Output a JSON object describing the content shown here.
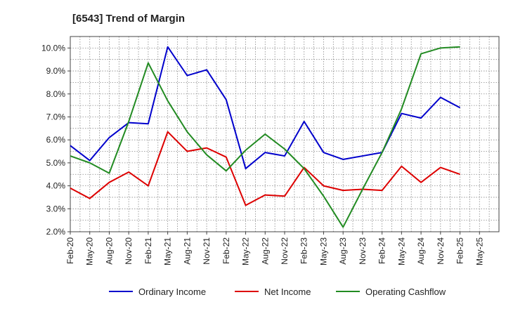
{
  "chart_data": {
    "type": "line",
    "title": "[6543]  Trend of Margin",
    "xlabel": "",
    "ylabel": "",
    "categories": [
      "Feb-20",
      "May-20",
      "Aug-20",
      "Nov-20",
      "Feb-21",
      "May-21",
      "Aug-21",
      "Nov-21",
      "Feb-22",
      "May-22",
      "Aug-22",
      "Nov-22",
      "Feb-23",
      "May-23",
      "Aug-23",
      "Nov-23",
      "Feb-24",
      "May-24",
      "Aug-24",
      "Nov-24",
      "Feb-25",
      "May-25"
    ],
    "y_ticks": [
      "2.0%",
      "3.0%",
      "4.0%",
      "5.0%",
      "6.0%",
      "7.0%",
      "8.0%",
      "9.0%",
      "10.0%"
    ],
    "ylim": [
      2.0,
      10.5
    ],
    "grid": true,
    "legend_position": "bottom",
    "series": [
      {
        "name": "Ordinary Income",
        "color": "#0000cc",
        "values": [
          5.75,
          5.1,
          6.1,
          6.75,
          6.7,
          10.05,
          8.8,
          9.05,
          7.75,
          4.75,
          5.45,
          5.3,
          6.8,
          5.45,
          5.15,
          5.3,
          5.45,
          7.15,
          6.95,
          7.85,
          7.4,
          null
        ]
      },
      {
        "name": "Net Income",
        "color": "#dd0000",
        "values": [
          3.9,
          3.45,
          4.15,
          4.6,
          4.0,
          6.35,
          5.5,
          5.65,
          5.25,
          3.15,
          3.6,
          3.55,
          4.8,
          4.0,
          3.8,
          3.85,
          3.8,
          4.85,
          4.15,
          4.8,
          4.5,
          null
        ]
      },
      {
        "name": "Operating Cashflow",
        "color": "#228b22",
        "values": [
          5.3,
          5.0,
          4.55,
          6.8,
          9.35,
          7.7,
          6.35,
          5.35,
          4.65,
          5.55,
          6.25,
          5.6,
          4.75,
          3.55,
          2.2,
          3.85,
          5.45,
          7.35,
          9.75,
          10.0,
          10.05,
          null
        ]
      }
    ]
  }
}
